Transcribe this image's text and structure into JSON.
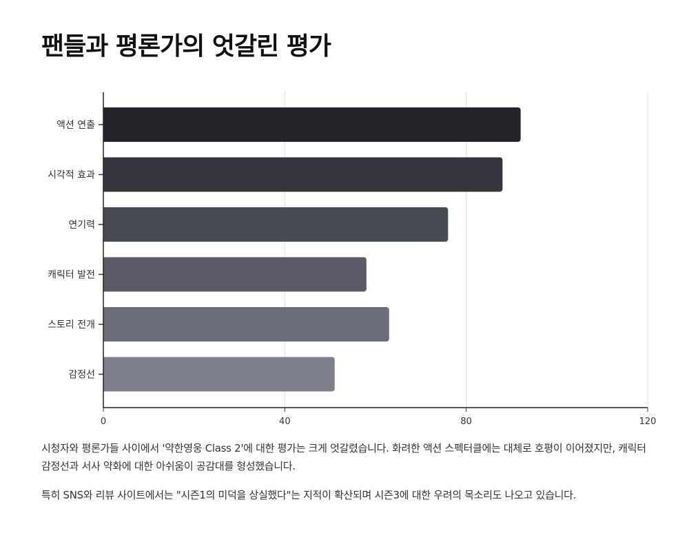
{
  "title": "팬들과 평론가의 엇갈린 평가",
  "chart_data": {
    "type": "bar",
    "orientation": "horizontal",
    "title": "",
    "xlabel": "",
    "ylabel": "",
    "categories": [
      "액션 연출",
      "시각적 효과",
      "연기력",
      "캐릭터 발전",
      "스토리 전개",
      "감정선"
    ],
    "values": [
      92,
      88,
      76,
      58,
      63,
      51
    ],
    "xlim": [
      0,
      120
    ],
    "xticks": [
      "0",
      "40",
      "80",
      "120"
    ],
    "grid": "vertical",
    "legend": "none",
    "colors": [
      "#232429",
      "#35353d",
      "#484a54",
      "#5a5b67",
      "#6b6d79",
      "#7d7e8d"
    ]
  },
  "captions": [
    "시청자와 평론가들 사이에서 '약한영웅 Class 2'에 대한 평가는 크게 엇갈렸습니다. 화려한 액션 스펙터클에는 대체로 호평이 이어졌지만, 캐릭터 감정선과 서사 약화에 대한 아쉬움이 공감대를 형성했습니다.",
    "특히 SNS와 리뷰 사이트에서는 \"시즌1의 미덕을 상실했다\"는 지적이 확산되며 시즌3에 대한 우려의 목소리도 나오고 있습니다."
  ]
}
